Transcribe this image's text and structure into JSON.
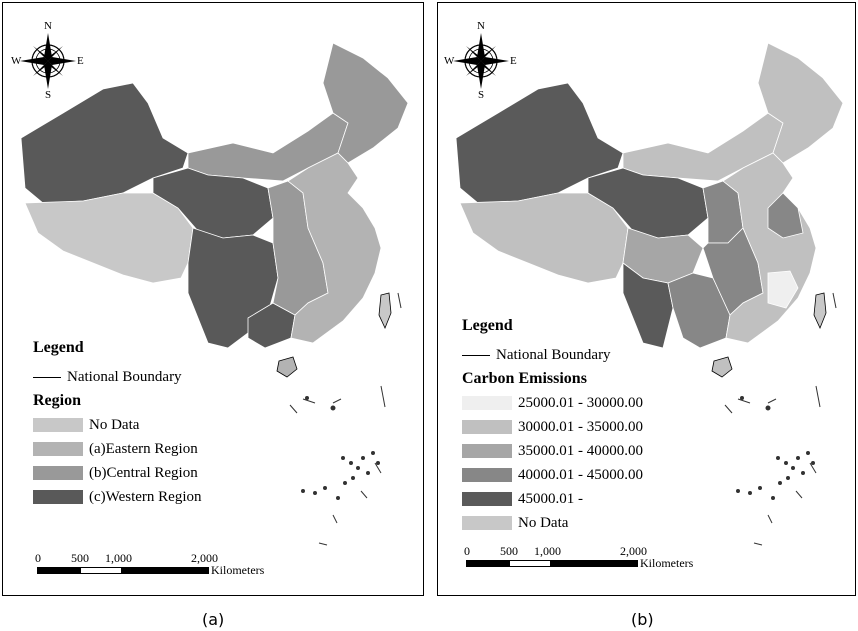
{
  "panel_a": {
    "caption": "(a)",
    "compass": {
      "n": "N",
      "s": "S",
      "e": "E",
      "w": "W"
    },
    "legend": {
      "title": "Legend",
      "boundary_label": "National Boundary",
      "category_title": "Region",
      "items": [
        {
          "label": "No Data",
          "color": "#c8c8c8"
        },
        {
          "label": "(a)Eastern Region",
          "color": "#b3b3b3"
        },
        {
          "label": "(b)Central Region",
          "color": "#999999"
        },
        {
          "label": "(c)Western Region",
          "color": "#595959"
        }
      ]
    },
    "scale": {
      "ticks": [
        "0",
        "500",
        "1,000",
        "2,000"
      ],
      "unit": "Kilometers"
    }
  },
  "panel_b": {
    "caption": "(b)",
    "compass": {
      "n": "N",
      "s": "S",
      "e": "E",
      "w": "W"
    },
    "legend": {
      "title": "Legend",
      "boundary_label": "National Boundary",
      "category_title": "Carbon Emissions",
      "items": [
        {
          "label": "25000.01 - 30000.00",
          "color": "#efefef"
        },
        {
          "label": "30000.01 - 35000.00",
          "color": "#c0c0c0"
        },
        {
          "label": "35000.01 - 40000.00",
          "color": "#a6a6a6"
        },
        {
          "label": "40000.01 - 45000.00",
          "color": "#878787"
        },
        {
          "label": "45000.01 -",
          "color": "#5a5a5a"
        },
        {
          "label": "No Data",
          "color": "#c8c8c8"
        }
      ]
    },
    "scale": {
      "ticks": [
        "0",
        "500",
        "1,000",
        "2,000"
      ],
      "unit": "Kilometers"
    }
  }
}
